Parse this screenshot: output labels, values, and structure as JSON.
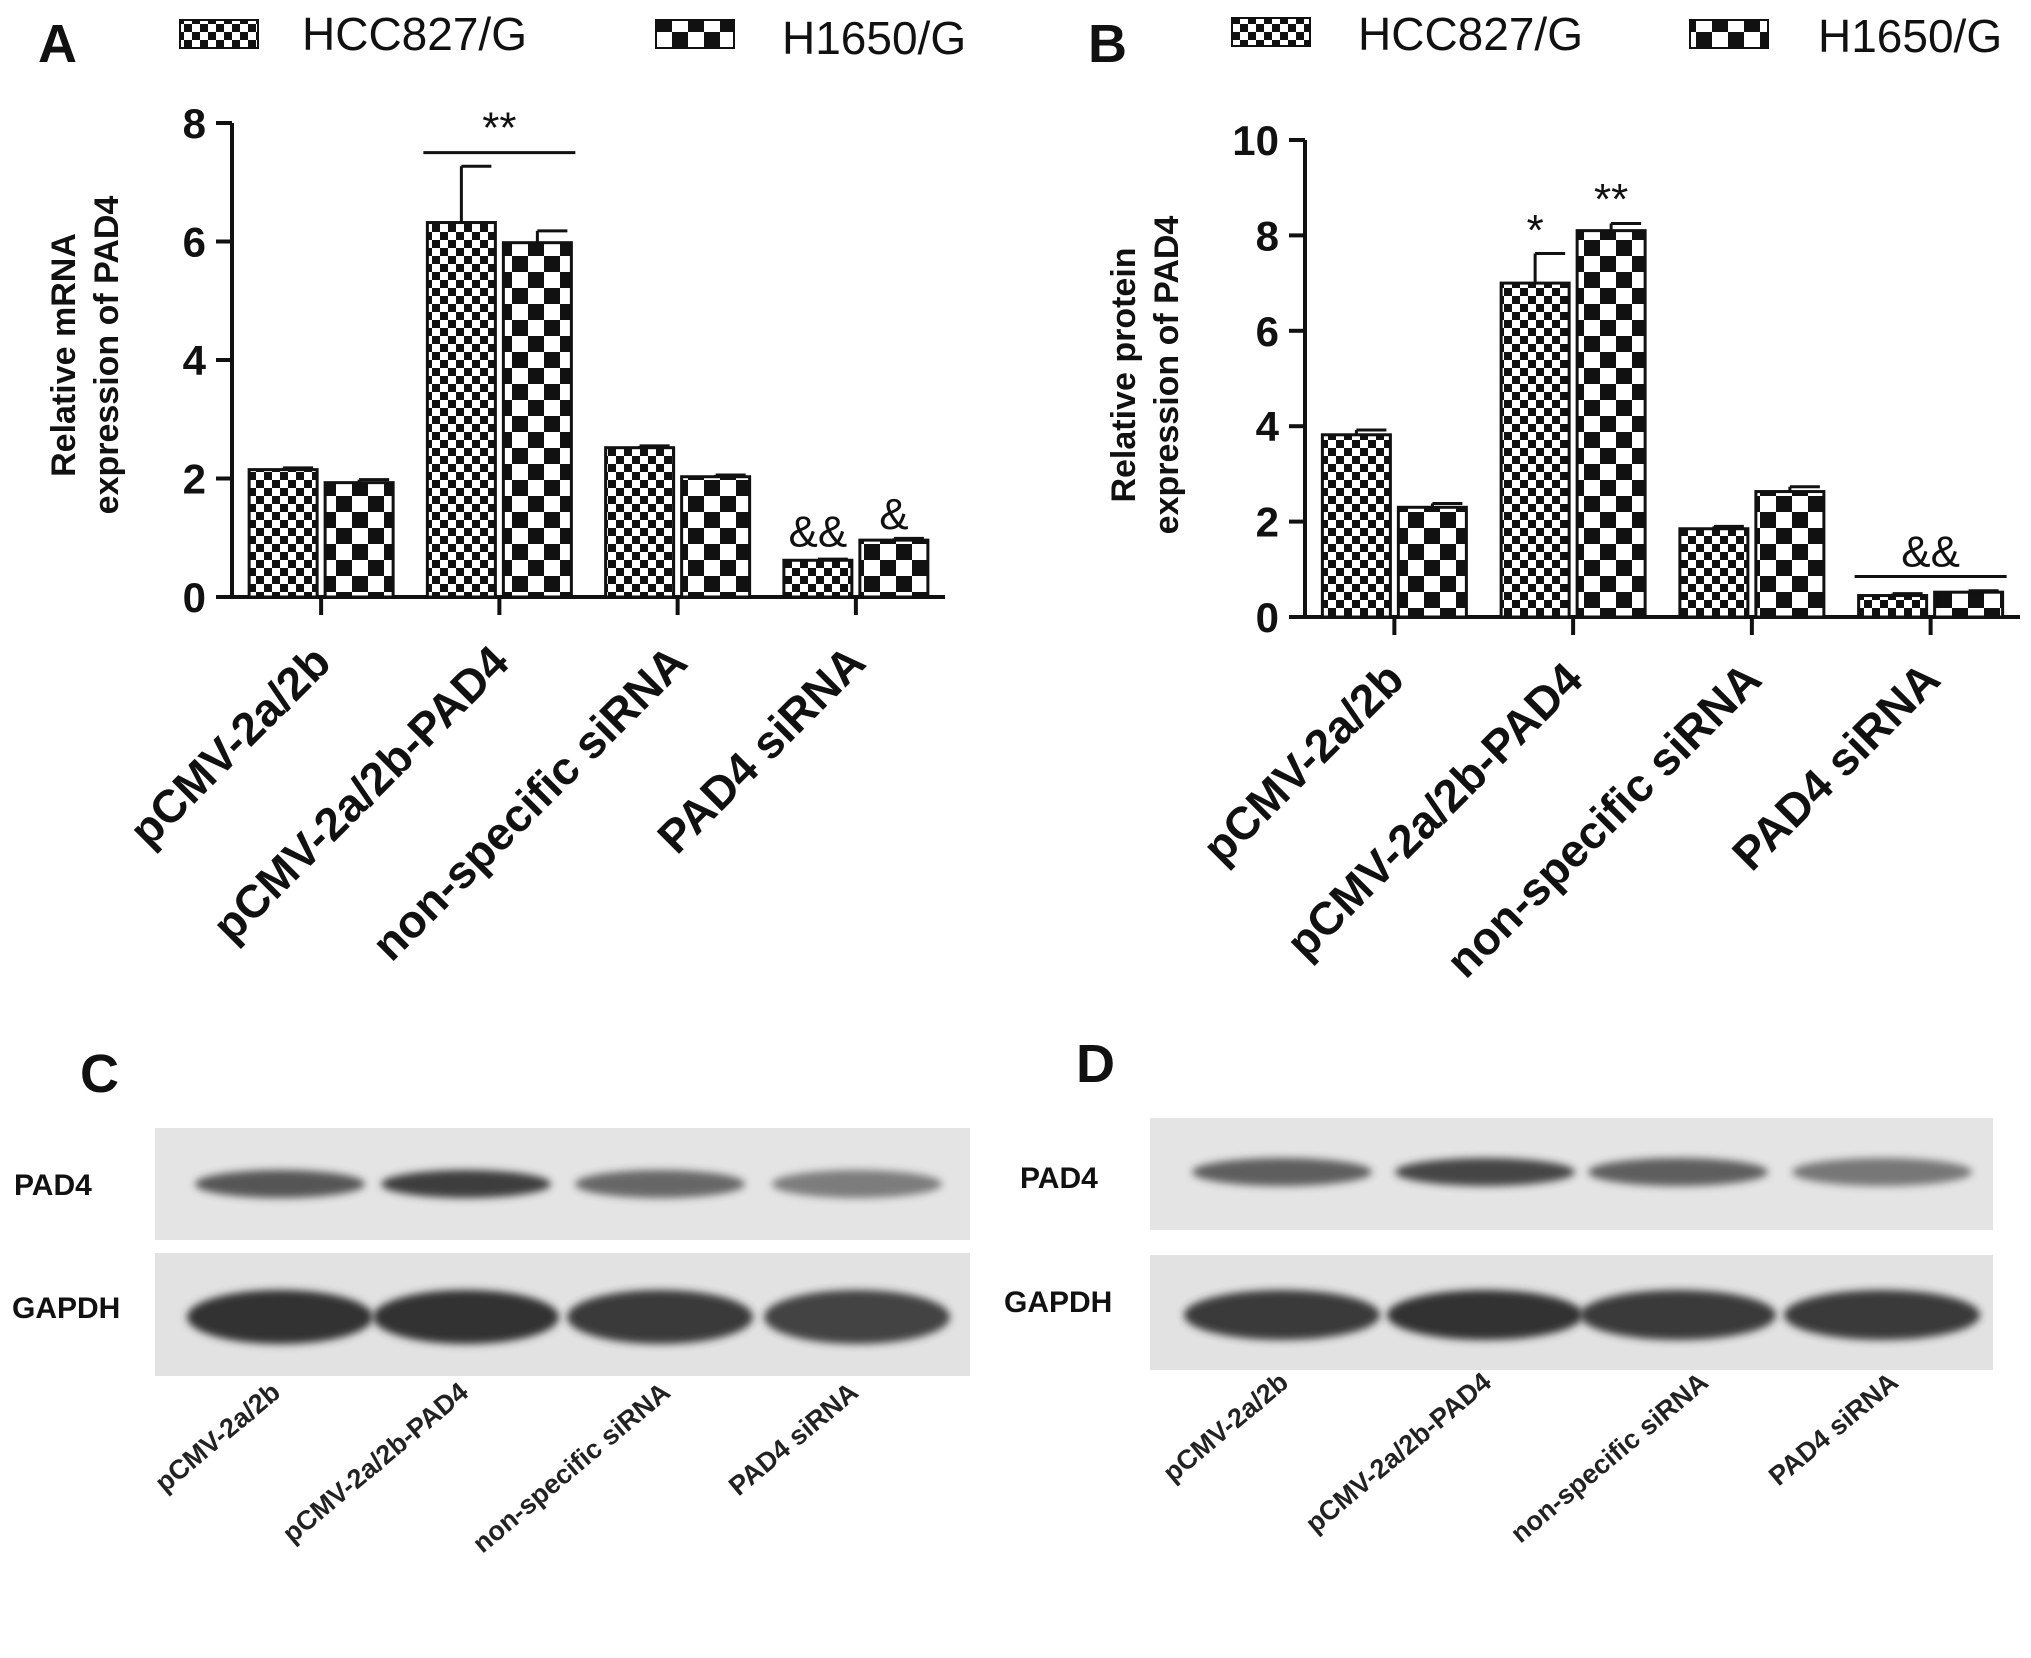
{
  "legend": {
    "series": [
      {
        "name": "HCC827/G",
        "pattern": "small-check"
      },
      {
        "name": "H1650/G",
        "pattern": "large-check"
      }
    ]
  },
  "panels": {
    "A": {
      "letter": "A"
    },
    "B": {
      "letter": "B"
    },
    "C": {
      "letter": "C",
      "labels": [
        "PAD4",
        "GAPDH"
      ]
    },
    "D": {
      "letter": "D",
      "labels": [
        "PAD4",
        "GAPDH"
      ]
    }
  },
  "lanes": [
    "pCMV-2a/2b",
    "pCMV-2a/2b-PAD4",
    "non-specific siRNA",
    "PAD4 siRNA"
  ],
  "chart_data": [
    {
      "type": "bar",
      "panel": "A",
      "ylabel": [
        "Relative mRNA",
        "expression of PAD4"
      ],
      "ylim": [
        0,
        8
      ],
      "yticks": [
        0,
        2,
        4,
        6,
        8
      ],
      "categories": [
        "pCMV-2a/2b",
        "pCMV-2a/2b-PAD4",
        "non-specific siRNA",
        "PAD4 siRNA"
      ],
      "series": [
        {
          "name": "HCC827/G",
          "values": [
            2.15,
            6.32,
            2.52,
            0.62
          ],
          "errors": [
            0.03,
            0.95,
            0.03,
            0.02
          ]
        },
        {
          "name": "H1650/G",
          "values": [
            1.93,
            5.98,
            2.03,
            0.96
          ],
          "errors": [
            0.05,
            0.2,
            0.03,
            0.03
          ]
        }
      ],
      "annotations": [
        {
          "text": "**",
          "category": 1,
          "bracket": true,
          "y": 7.5
        },
        {
          "text": "&&",
          "category": 3,
          "series": 0,
          "y": 0.85
        },
        {
          "text": "&",
          "category": 3,
          "series": 1,
          "y": 1.15
        }
      ]
    },
    {
      "type": "bar",
      "panel": "B",
      "ylabel": [
        "Relative protein",
        "expression of PAD4"
      ],
      "ylim": [
        0,
        10
      ],
      "yticks": [
        0,
        2,
        4,
        6,
        8,
        10
      ],
      "categories": [
        "pCMV-2a/2b",
        "pCMV-2a/2b-PAD4",
        "non-specific siRNA",
        "PAD4 siRNA"
      ],
      "series": [
        {
          "name": "HCC827/G",
          "values": [
            3.82,
            7.0,
            1.85,
            0.45
          ],
          "errors": [
            0.1,
            0.62,
            0.05,
            0.04
          ]
        },
        {
          "name": "H1650/G",
          "values": [
            2.3,
            8.1,
            2.63,
            0.52
          ],
          "errors": [
            0.08,
            0.15,
            0.1,
            0.03
          ]
        }
      ],
      "annotations": [
        {
          "text": "*",
          "category": 1,
          "series": 0,
          "y": 7.8
        },
        {
          "text": "**",
          "category": 1,
          "series": 1,
          "y": 8.45
        },
        {
          "text": "&&",
          "category": 3,
          "bracket": true,
          "y": 0.85
        }
      ]
    }
  ]
}
